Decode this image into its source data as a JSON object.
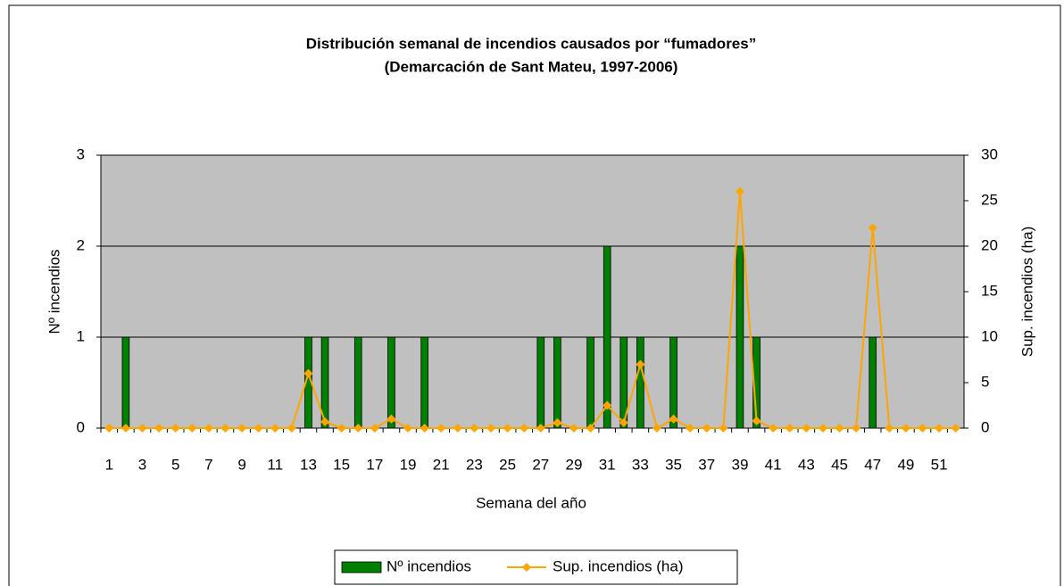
{
  "chart_data": {
    "type": "bar_line",
    "title": "Distribución semanal de incendios causados por “fumadores”",
    "subtitle": "(Demarcación de Sant Mateu, 1997-2006)",
    "x_label": "Semana del año",
    "y_label": "Nº incendios",
    "y2_label": "Sup. incendios (ha)",
    "categories": [
      1,
      null,
      3,
      null,
      5,
      null,
      7,
      null,
      9,
      null,
      11,
      null,
      13,
      null,
      15,
      null,
      17,
      null,
      19,
      null,
      21,
      null,
      23,
      null,
      25,
      null,
      27,
      null,
      29,
      null,
      31,
      null,
      33,
      null,
      35,
      null,
      37,
      null,
      39,
      null,
      41,
      null,
      43,
      null,
      45,
      null,
      47,
      null,
      49,
      null,
      51,
      null
    ],
    "series": [
      {
        "name": "Nº incendios",
        "type": "bar",
        "color": "#008000",
        "values": [
          0,
          1,
          0,
          0,
          0,
          0,
          0,
          0,
          0,
          0,
          0,
          0,
          1,
          1,
          0,
          1,
          0,
          1,
          0,
          1,
          0,
          0,
          0,
          0,
          0,
          0,
          1,
          1,
          0,
          1,
          2,
          1,
          1,
          0,
          1,
          0,
          0,
          0,
          2,
          1,
          0,
          0,
          0,
          0,
          0,
          0,
          1,
          0,
          0,
          0,
          0,
          0
        ]
      },
      {
        "name": "Sup. incendios (ha)",
        "type": "line",
        "axis": "y2",
        "color": "#FFA500",
        "values": [
          0,
          0,
          0,
          0,
          0,
          0,
          0,
          0,
          0,
          0,
          0,
          0,
          6,
          0.7,
          0,
          0,
          0,
          1,
          0,
          0,
          0,
          0,
          0,
          0,
          0,
          0,
          0,
          0.6,
          0,
          0,
          2.5,
          0.6,
          7,
          0,
          1,
          0,
          0,
          0,
          26,
          0.8,
          0,
          0,
          0,
          0,
          0,
          0,
          22,
          0,
          0,
          0,
          0,
          0
        ]
      }
    ],
    "ylim": [
      0,
      3
    ],
    "yticks": [
      0,
      1,
      2,
      3
    ],
    "y2lim": [
      0,
      30
    ],
    "y2ticks": [
      0,
      5,
      10,
      15,
      20,
      25,
      30
    ],
    "grid": true,
    "plot_background": "#C0C0C0",
    "legend": "bottom"
  }
}
